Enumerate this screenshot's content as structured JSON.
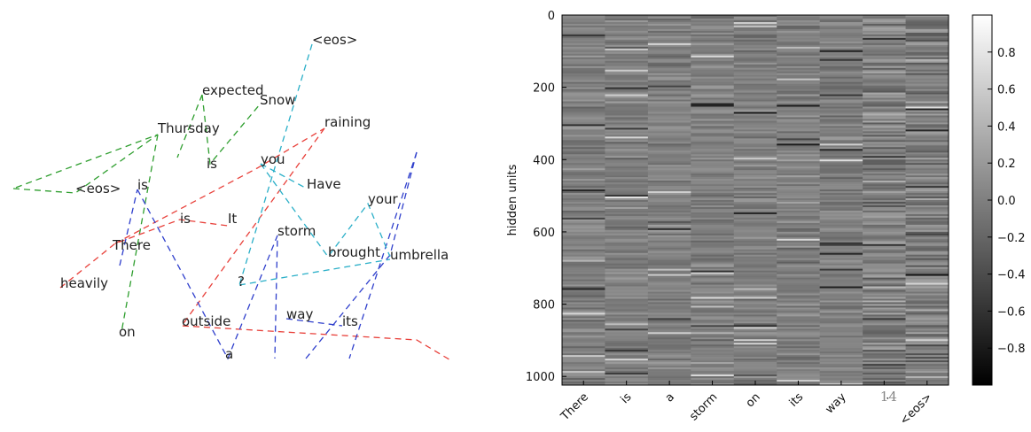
{
  "chart_data": [
    {
      "type": "scatter",
      "note_words_plotted_as_text": true,
      "points": [
        {
          "label": "Thursday",
          "x": 178,
          "y": 150
        },
        {
          "label": "expected",
          "x": 228,
          "y": 107
        },
        {
          "label": "Snow",
          "x": 293,
          "y": 118
        },
        {
          "label": "is",
          "x": 233,
          "y": 190
        },
        {
          "label": "<eos>",
          "x": 85,
          "y": 218
        },
        {
          "label": "is",
          "x": 155,
          "y": 214
        },
        {
          "label": "<eos>",
          "x": 352,
          "y": 50
        },
        {
          "label": "you",
          "x": 294,
          "y": 185
        },
        {
          "label": "Have",
          "x": 346,
          "y": 213
        },
        {
          "label": "raining",
          "x": 366,
          "y": 143
        },
        {
          "label": "your",
          "x": 415,
          "y": 230
        },
        {
          "label": "is",
          "x": 203,
          "y": 252
        },
        {
          "label": "It",
          "x": 257,
          "y": 252
        },
        {
          "label": "storm",
          "x": 313,
          "y": 266
        },
        {
          "label": "There",
          "x": 127,
          "y": 282
        },
        {
          "label": "brought",
          "x": 370,
          "y": 290
        },
        {
          "label": "umbrella",
          "x": 440,
          "y": 293
        },
        {
          "label": "heavily",
          "x": 68,
          "y": 325
        },
        {
          "label": "?",
          "x": 268,
          "y": 323
        },
        {
          "label": "on",
          "x": 134,
          "y": 380
        },
        {
          "label": "outside",
          "x": 205,
          "y": 368
        },
        {
          "label": "way",
          "x": 323,
          "y": 360
        },
        {
          "label": "its",
          "x": 386,
          "y": 368
        },
        {
          "label": "a",
          "x": 254,
          "y": 405
        }
      ],
      "series": [
        {
          "color": "#2e9e2e",
          "path": [
            [
              15,
              213
            ],
            [
              85,
              218
            ],
            [
              178,
              152
            ],
            [
              15,
              213
            ]
          ]
        },
        {
          "color": "#2e9e2e",
          "path": [
            [
              178,
              152
            ],
            [
              137,
              375
            ]
          ]
        },
        {
          "color": "#2e9e2e",
          "path": [
            [
              228,
              107
            ],
            [
              237,
              185
            ],
            [
              293,
              118
            ]
          ]
        },
        {
          "color": "#2e9e2e",
          "path": [
            [
              228,
              107
            ],
            [
              200,
              178
            ]
          ]
        },
        {
          "color": "#e8403a",
          "path": [
            [
              68,
              325
            ],
            [
              130,
              275
            ],
            [
              203,
              248
            ],
            [
              257,
              255
            ]
          ]
        },
        {
          "color": "#e8403a",
          "path": [
            [
              130,
              275
            ],
            [
              290,
              190
            ],
            [
              366,
              145
            ]
          ]
        },
        {
          "color": "#e8403a",
          "path": [
            [
              366,
              145
            ],
            [
              205,
              368
            ],
            [
              470,
              384
            ],
            [
              510,
              408
            ]
          ]
        },
        {
          "color": "#2f3fcc",
          "path": [
            [
              155,
              214
            ],
            [
              257,
              405
            ],
            [
              313,
              266
            ],
            [
              310,
              405
            ]
          ]
        },
        {
          "color": "#2f3fcc",
          "path": [
            [
              135,
              300
            ],
            [
              155,
              214
            ]
          ]
        },
        {
          "color": "#2f3fcc",
          "path": [
            [
              470,
              172
            ],
            [
              394,
              405
            ]
          ]
        },
        {
          "color": "#2f3fcc",
          "path": [
            [
              345,
              405
            ],
            [
              440,
              288
            ],
            [
              470,
              172
            ]
          ]
        },
        {
          "color": "#2f3fcc",
          "path": [
            [
              323,
              360
            ],
            [
              386,
              368
            ]
          ]
        },
        {
          "color": "#2aafc8",
          "path": [
            [
              352,
              50
            ],
            [
              270,
              322
            ]
          ]
        },
        {
          "color": "#2aafc8",
          "path": [
            [
              294,
              185
            ],
            [
              346,
              213
            ]
          ]
        },
        {
          "color": "#2aafc8",
          "path": [
            [
              294,
              185
            ],
            [
              370,
              290
            ],
            [
              415,
              230
            ],
            [
              440,
              290
            ]
          ]
        },
        {
          "color": "#2aafc8",
          "path": [
            [
              270,
              322
            ],
            [
              440,
              293
            ]
          ]
        }
      ]
    },
    {
      "type": "heatmap",
      "xlabel": "",
      "ylabel": "hidden units",
      "categories": [
        "There",
        "is",
        "a",
        "storm",
        "on",
        "its",
        "way",
        ".",
        "<eos>"
      ],
      "extra_label": "14",
      "ylim": [
        0,
        1024
      ],
      "yticks": [
        0,
        200,
        400,
        600,
        800,
        1000
      ],
      "colorbar": {
        "ticks": [
          "0.8",
          "0.6",
          "0.4",
          "0.2",
          "0.0",
          "−0.2",
          "−0.4",
          "−0.6",
          "−0.8"
        ],
        "min": -1,
        "max": 1,
        "cmap": "gray"
      }
    }
  ]
}
